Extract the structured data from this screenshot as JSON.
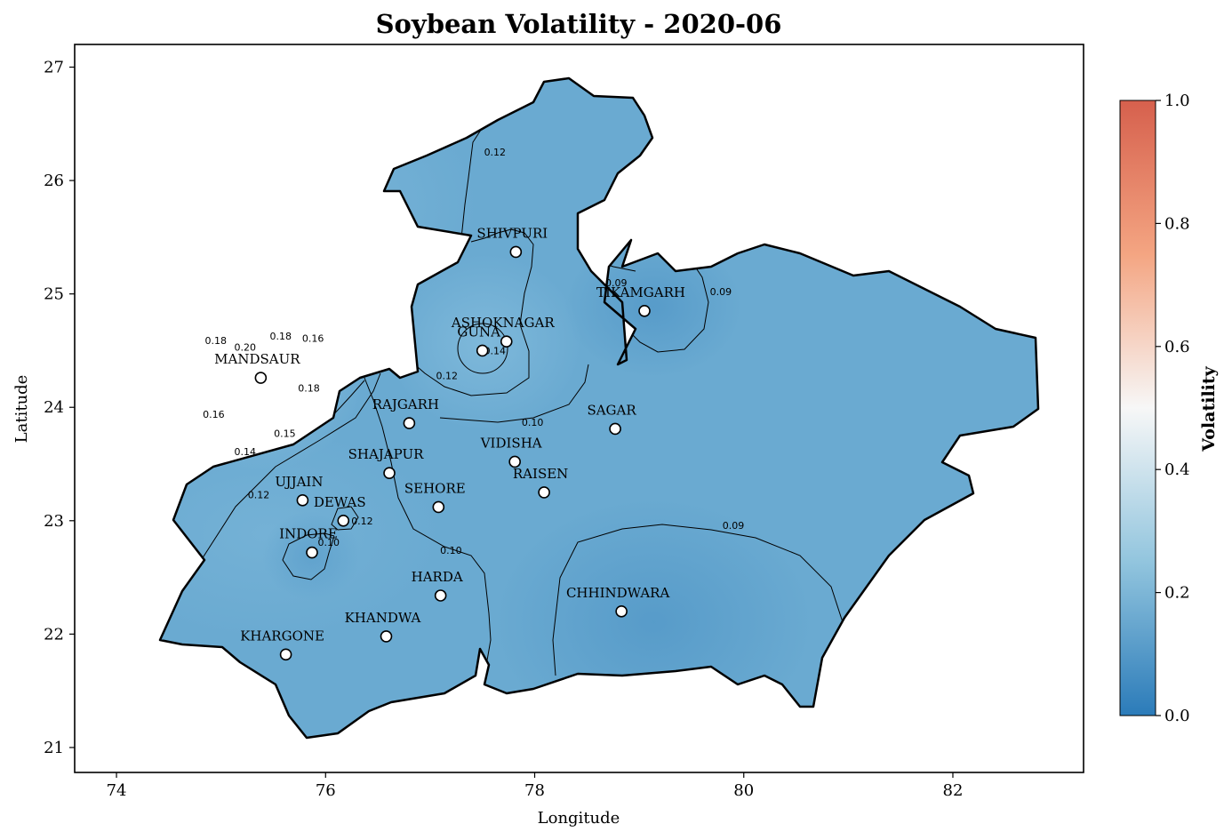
{
  "title": "Soybean Volatility - 2020-06",
  "xlabel": "Longitude",
  "ylabel": "Latitude",
  "colorbar": {
    "label": "Volatility",
    "ticks": [
      "0.0",
      "0.2",
      "0.4",
      "0.6",
      "0.8",
      "1.0"
    ],
    "colors": [
      "#2b7bb9",
      "#92c5de",
      "#f7f7f7",
      "#f4a582",
      "#d6604d"
    ]
  },
  "fill_color": "#6aaad1",
  "x_ticks": [
    "74",
    "76",
    "78",
    "80",
    "82"
  ],
  "y_ticks": [
    "21",
    "22",
    "23",
    "24",
    "25",
    "26",
    "27"
  ],
  "chart_data": {
    "type": "contour-map",
    "xlim": [
      73.6,
      83.25
    ],
    "ylim": [
      20.78,
      27.2
    ],
    "districts": [
      {
        "name": "SHIVPURI",
        "lon": 77.82,
        "lat": 25.37,
        "volatility": 0.11
      },
      {
        "name": "TIKAMGARH",
        "lon": 79.05,
        "lat": 24.85,
        "volatility": 0.08
      },
      {
        "name": "ASHOKNAGAR",
        "lon": 77.73,
        "lat": 24.58,
        "volatility": 0.13
      },
      {
        "name": "GUNA",
        "lon": 77.5,
        "lat": 24.5,
        "volatility": 0.15
      },
      {
        "name": "MANDSAUR",
        "lon": 75.38,
        "lat": 24.26,
        "volatility": 0.21
      },
      {
        "name": "RAJGARH",
        "lon": 76.8,
        "lat": 23.86,
        "volatility": 0.11
      },
      {
        "name": "SAGAR",
        "lon": 78.77,
        "lat": 23.81,
        "volatility": 0.09
      },
      {
        "name": "VIDISHA",
        "lon": 77.81,
        "lat": 23.52,
        "volatility": 0.1
      },
      {
        "name": "SHAJAPUR",
        "lon": 76.61,
        "lat": 23.42,
        "volatility": 0.12
      },
      {
        "name": "RAISEN",
        "lon": 78.09,
        "lat": 23.25,
        "volatility": 0.1
      },
      {
        "name": "UJJAIN",
        "lon": 75.78,
        "lat": 23.18,
        "volatility": 0.12
      },
      {
        "name": "SEHORE",
        "lon": 77.08,
        "lat": 23.12,
        "volatility": 0.11
      },
      {
        "name": "DEWAS",
        "lon": 76.17,
        "lat": 23.0,
        "volatility": 0.13
      },
      {
        "name": "INDORE",
        "lon": 75.87,
        "lat": 22.72,
        "volatility": 0.09
      },
      {
        "name": "HARDA",
        "lon": 77.1,
        "lat": 22.34,
        "volatility": 0.1
      },
      {
        "name": "CHHINDWARA",
        "lon": 78.83,
        "lat": 22.2,
        "volatility": 0.08
      },
      {
        "name": "KHANDWA",
        "lon": 76.58,
        "lat": 21.98,
        "volatility": 0.1
      },
      {
        "name": "KHARGONE",
        "lon": 75.62,
        "lat": 21.82,
        "volatility": 0.1
      }
    ],
    "contour_labels": [
      {
        "text": "0.12",
        "lon": 77.62,
        "lat": 26.25
      },
      {
        "text": "0.14",
        "lon": 77.62,
        "lat": 24.5
      },
      {
        "text": "0.12",
        "lon": 77.16,
        "lat": 24.28
      },
      {
        "text": "0.10",
        "lon": 77.98,
        "lat": 23.87
      },
      {
        "text": "0.09",
        "lon": 78.78,
        "lat": 25.1
      },
      {
        "text": "0.09",
        "lon": 79.78,
        "lat": 25.02
      },
      {
        "text": "0.18",
        "lon": 74.95,
        "lat": 24.59
      },
      {
        "text": "0.20",
        "lon": 75.23,
        "lat": 24.53
      },
      {
        "text": "0.18",
        "lon": 75.57,
        "lat": 24.63
      },
      {
        "text": "0.16",
        "lon": 75.88,
        "lat": 24.61
      },
      {
        "text": "0.18",
        "lon": 75.84,
        "lat": 24.17
      },
      {
        "text": "0.16",
        "lon": 74.93,
        "lat": 23.94
      },
      {
        "text": "0.15",
        "lon": 75.61,
        "lat": 23.77
      },
      {
        "text": "0.14",
        "lon": 75.23,
        "lat": 23.61
      },
      {
        "text": "0.12",
        "lon": 75.36,
        "lat": 23.23
      },
      {
        "text": "0.12",
        "lon": 76.35,
        "lat": 23.0
      },
      {
        "text": "0.10",
        "lon": 76.03,
        "lat": 22.81
      },
      {
        "text": "0.10",
        "lon": 77.2,
        "lat": 22.74
      },
      {
        "text": "0.09",
        "lon": 79.9,
        "lat": 22.96
      }
    ]
  }
}
